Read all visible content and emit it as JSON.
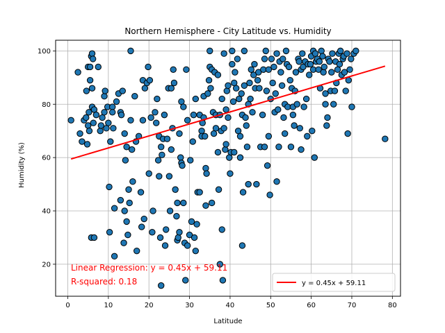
{
  "chart_data": {
    "type": "scatter",
    "title": "Northern Hemisphere - City Latitude vs. Humidity",
    "xlabel": "Latitude",
    "ylabel": "Humidity (%)",
    "xlim": [
      -3,
      82
    ],
    "ylim": [
      8,
      104
    ],
    "xticks": [
      0,
      10,
      20,
      30,
      40,
      50,
      60,
      70,
      80
    ],
    "yticks": [
      20,
      40,
      60,
      80,
      100
    ],
    "grid": true,
    "legend_position": "lower-right",
    "colors": {
      "points": "#1f77b4",
      "point_edge": "#000000",
      "regression": "#ff0000",
      "grid": "#b0b0b0"
    },
    "regression": {
      "slope": 0.45,
      "intercept": 59.11,
      "x_range": [
        0.8,
        78.2
      ],
      "label": "y = 0.45x + 59.11"
    },
    "annotation": {
      "line1": "Linear Regression: y = 0.45x + 59.11",
      "line2": "R-squared: 0.18"
    },
    "points": [
      [
        0.8,
        74
      ],
      [
        2.5,
        92
      ],
      [
        3,
        69
      ],
      [
        3.5,
        66
      ],
      [
        4,
        74
      ],
      [
        4.5,
        75
      ],
      [
        4.6,
        85
      ],
      [
        4.8,
        65
      ],
      [
        5,
        72
      ],
      [
        5,
        94
      ],
      [
        5.2,
        77
      ],
      [
        5.3,
        70
      ],
      [
        5.5,
        89
      ],
      [
        5.5,
        94
      ],
      [
        5.8,
        98
      ],
      [
        5.8,
        30
      ],
      [
        6,
        99
      ],
      [
        6,
        79
      ],
      [
        6,
        86
      ],
      [
        6.2,
        97
      ],
      [
        6.3,
        73
      ],
      [
        6.5,
        78
      ],
      [
        6.5,
        30
      ],
      [
        7,
        76
      ],
      [
        7.5,
        94
      ],
      [
        8,
        70
      ],
      [
        8.2,
        72
      ],
      [
        8.5,
        75
      ],
      [
        9,
        83
      ],
      [
        9,
        77
      ],
      [
        9.2,
        85
      ],
      [
        9.5,
        71
      ],
      [
        9.8,
        79
      ],
      [
        10,
        73
      ],
      [
        10.2,
        49
      ],
      [
        10.3,
        32
      ],
      [
        10.5,
        66
      ],
      [
        11,
        79
      ],
      [
        11,
        77
      ],
      [
        11.2,
        71
      ],
      [
        11.5,
        23
      ],
      [
        11.5,
        41
      ],
      [
        12,
        81
      ],
      [
        12.5,
        84
      ],
      [
        13,
        77
      ],
      [
        13,
        44
      ],
      [
        13.2,
        76
      ],
      [
        13.5,
        85
      ],
      [
        13.8,
        28
      ],
      [
        14,
        69
      ],
      [
        14,
        40
      ],
      [
        14.2,
        59
      ],
      [
        14.5,
        64
      ],
      [
        14.5,
        36
      ],
      [
        14.8,
        31
      ],
      [
        15,
        48
      ],
      [
        15.2,
        43
      ],
      [
        15.5,
        100
      ],
      [
        15.5,
        74
      ],
      [
        15.8,
        63
      ],
      [
        16,
        51
      ],
      [
        16.5,
        83
      ],
      [
        16.8,
        66
      ],
      [
        17,
        25
      ],
      [
        17.5,
        68
      ],
      [
        18,
        47
      ],
      [
        18.2,
        34
      ],
      [
        18.5,
        74
      ],
      [
        18.5,
        89
      ],
      [
        18.8,
        37
      ],
      [
        19,
        86
      ],
      [
        19.5,
        88
      ],
      [
        19.8,
        94
      ],
      [
        20,
        54
      ],
      [
        20.2,
        89
      ],
      [
        20.5,
        75
      ],
      [
        20.8,
        32
      ],
      [
        21,
        40
      ],
      [
        21.5,
        77
      ],
      [
        21.8,
        73
      ],
      [
        22,
        82
      ],
      [
        22.3,
        59
      ],
      [
        22.5,
        68
      ],
      [
        22.5,
        53
      ],
      [
        22.8,
        30
      ],
      [
        23,
        64
      ],
      [
        23,
        12
      ],
      [
        23.2,
        61
      ],
      [
        23.5,
        67
      ],
      [
        23.8,
        76
      ],
      [
        24,
        27
      ],
      [
        24.2,
        33
      ],
      [
        24.5,
        67
      ],
      [
        24.8,
        86
      ],
      [
        25,
        53
      ],
      [
        25.2,
        40
      ],
      [
        25.5,
        63
      ],
      [
        25.5,
        86
      ],
      [
        25.8,
        71
      ],
      [
        26,
        93
      ],
      [
        26.2,
        88
      ],
      [
        26.5,
        48
      ],
      [
        26.8,
        38
      ],
      [
        27,
        43
      ],
      [
        27,
        29
      ],
      [
        27.2,
        30
      ],
      [
        27.5,
        32
      ],
      [
        27.5,
        69
      ],
      [
        27.8,
        60
      ],
      [
        28,
        58
      ],
      [
        28,
        81
      ],
      [
        28.2,
        57
      ],
      [
        28.5,
        43
      ],
      [
        28.5,
        79
      ],
      [
        28.8,
        28
      ],
      [
        29,
        14
      ],
      [
        29.2,
        93
      ],
      [
        29.5,
        74
      ],
      [
        29.5,
        27
      ],
      [
        30,
        31
      ],
      [
        30.2,
        59
      ],
      [
        30.5,
        36
      ],
      [
        30.8,
        66
      ],
      [
        31,
        76
      ],
      [
        31.2,
        30
      ],
      [
        31.5,
        25
      ],
      [
        31.5,
        82
      ],
      [
        31.8,
        35
      ],
      [
        32,
        47
      ],
      [
        32.5,
        76
      ],
      [
        32.5,
        47
      ],
      [
        33,
        70
      ],
      [
        33,
        68
      ],
      [
        33.2,
        73
      ],
      [
        33.5,
        75
      ],
      [
        33.5,
        83
      ],
      [
        33.8,
        68
      ],
      [
        34,
        42
      ],
      [
        34,
        56
      ],
      [
        34.2,
        54
      ],
      [
        34.5,
        84
      ],
      [
        34.8,
        89
      ],
      [
        35,
        94
      ],
      [
        35,
        100
      ],
      [
        35.2,
        86
      ],
      [
        35.5,
        93
      ],
      [
        35.5,
        43
      ],
      [
        35.8,
        77
      ],
      [
        36,
        69
      ],
      [
        36.2,
        92
      ],
      [
        36.5,
        71
      ],
      [
        36.5,
        76
      ],
      [
        37,
        62
      ],
      [
        37,
        91
      ],
      [
        37.2,
        48
      ],
      [
        37.5,
        76
      ],
      [
        37.5,
        20
      ],
      [
        37.8,
        70
      ],
      [
        38,
        33
      ],
      [
        38,
        82
      ],
      [
        38.2,
        14
      ],
      [
        38.5,
        71
      ],
      [
        38.5,
        99
      ],
      [
        38.8,
        63
      ],
      [
        39,
        78
      ],
      [
        39,
        65
      ],
      [
        39.2,
        85
      ],
      [
        39.5,
        87
      ],
      [
        39.5,
        75
      ],
      [
        39.8,
        60
      ],
      [
        40,
        54
      ],
      [
        40.2,
        62
      ],
      [
        40.5,
        100
      ],
      [
        40.5,
        95
      ],
      [
        40.8,
        81
      ],
      [
        41,
        62
      ],
      [
        41,
        88
      ],
      [
        41.2,
        92
      ],
      [
        41.5,
        86
      ],
      [
        41.8,
        97
      ],
      [
        42,
        70
      ],
      [
        42.2,
        82
      ],
      [
        42.5,
        68
      ],
      [
        42.5,
        60
      ],
      [
        42.8,
        84
      ],
      [
        43,
        76
      ],
      [
        43,
        27
      ],
      [
        43.2,
        47
      ],
      [
        43.5,
        87
      ],
      [
        43.5,
        100
      ],
      [
        43.8,
        75
      ],
      [
        44,
        72
      ],
      [
        44.2,
        64
      ],
      [
        44.5,
        50
      ],
      [
        44.5,
        80
      ],
      [
        44.8,
        88
      ],
      [
        45,
        82
      ],
      [
        45.2,
        93
      ],
      [
        45.5,
        77
      ],
      [
        45.8,
        91
      ],
      [
        46,
        95
      ],
      [
        46.2,
        86
      ],
      [
        46.5,
        50
      ],
      [
        46.8,
        89
      ],
      [
        47,
        92
      ],
      [
        47.2,
        86
      ],
      [
        47.5,
        64
      ],
      [
        48,
        76
      ],
      [
        48.2,
        93
      ],
      [
        48.5,
        97
      ],
      [
        48.5,
        64
      ],
      [
        48.8,
        100
      ],
      [
        49,
        85
      ],
      [
        49.2,
        57
      ],
      [
        49.5,
        68
      ],
      [
        49.5,
        93
      ],
      [
        49.8,
        46
      ],
      [
        50,
        82
      ],
      [
        50.2,
        97
      ],
      [
        50.5,
        88
      ],
      [
        50.8,
        94
      ],
      [
        51,
        77
      ],
      [
        51.2,
        84
      ],
      [
        51.5,
        51
      ],
      [
        51.5,
        99
      ],
      [
        51.8,
        78
      ],
      [
        52,
        64
      ],
      [
        52.2,
        96
      ],
      [
        52.5,
        92
      ],
      [
        52.8,
        87
      ],
      [
        53,
        97
      ],
      [
        53.2,
        75
      ],
      [
        53.5,
        80
      ],
      [
        53.5,
        69
      ],
      [
        53.8,
        100
      ],
      [
        54,
        95
      ],
      [
        54.2,
        79
      ],
      [
        54.5,
        94
      ],
      [
        54.8,
        89
      ],
      [
        55,
        64
      ],
      [
        55.2,
        86
      ],
      [
        55.5,
        76
      ],
      [
        55.5,
        79
      ],
      [
        55.8,
        72
      ],
      [
        56,
        85
      ],
      [
        56.2,
        92
      ],
      [
        56.5,
        80
      ],
      [
        56.8,
        97
      ],
      [
        57,
        96
      ],
      [
        57.2,
        71
      ],
      [
        57.5,
        63
      ],
      [
        57.5,
        93
      ],
      [
        57.8,
        99
      ],
      [
        58,
        94
      ],
      [
        58.2,
        79
      ],
      [
        58.5,
        96
      ],
      [
        58.8,
        82
      ],
      [
        59,
        68
      ],
      [
        59.2,
        95
      ],
      [
        59.5,
        91
      ],
      [
        59.8,
        95
      ],
      [
        60,
        98
      ],
      [
        60.2,
        70
      ],
      [
        60.5,
        100
      ],
      [
        60.5,
        93
      ],
      [
        60.8,
        60
      ],
      [
        61,
        99
      ],
      [
        61.2,
        96
      ],
      [
        61.5,
        97
      ],
      [
        61.8,
        93
      ],
      [
        62,
        96
      ],
      [
        62.2,
        86
      ],
      [
        62.5,
        100
      ],
      [
        62.8,
        98
      ],
      [
        63,
        92
      ],
      [
        63.2,
        94
      ],
      [
        63.5,
        84
      ],
      [
        63.5,
        80
      ],
      [
        63.8,
        72
      ],
      [
        64,
        75
      ],
      [
        64.2,
        97
      ],
      [
        64.5,
        96
      ],
      [
        64.8,
        85
      ],
      [
        65,
        92
      ],
      [
        65.2,
        99
      ],
      [
        65.5,
        80
      ],
      [
        65.8,
        85
      ],
      [
        66,
        96
      ],
      [
        66.2,
        88
      ],
      [
        66.5,
        93
      ],
      [
        66.8,
        99
      ],
      [
        67,
        95
      ],
      [
        67.2,
        100
      ],
      [
        67.5,
        91
      ],
      [
        67.8,
        97
      ],
      [
        68,
        98
      ],
      [
        68.2,
        92
      ],
      [
        68.5,
        85
      ],
      [
        68.8,
        99
      ],
      [
        69,
        69
      ],
      [
        69.2,
        89
      ],
      [
        69.5,
        93
      ],
      [
        69.8,
        97
      ],
      [
        70,
        79
      ],
      [
        70.5,
        99
      ],
      [
        71,
        100
      ],
      [
        78.2,
        67
      ]
    ]
  }
}
